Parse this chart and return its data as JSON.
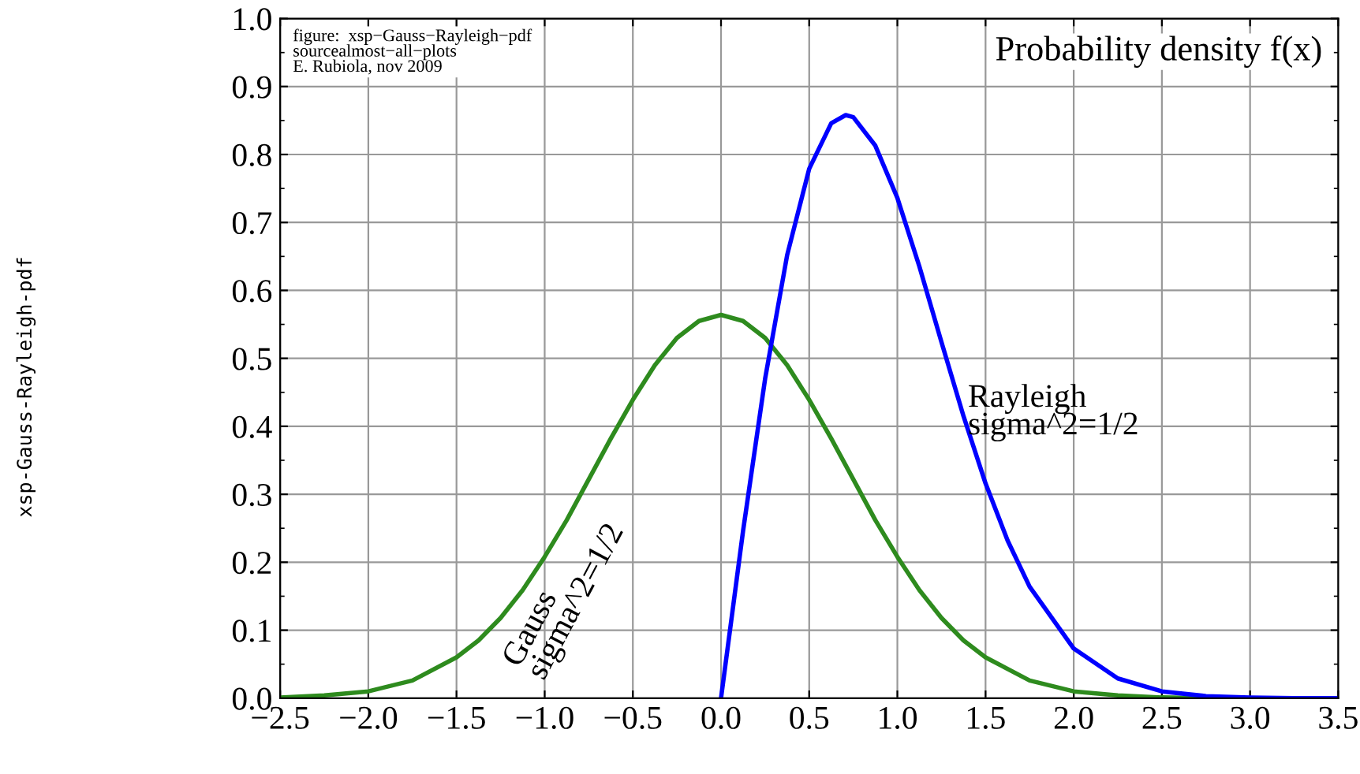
{
  "chart_data": {
    "type": "line",
    "title": "Probability density f(x)",
    "xlim": [
      -2.5,
      3.5
    ],
    "ylim": [
      0,
      1
    ],
    "xticks": [
      {
        "value": -2.5,
        "label": "−2.5"
      },
      {
        "value": -2,
        "label": "−2.0"
      },
      {
        "value": -1.5,
        "label": "−1.5"
      },
      {
        "value": -1,
        "label": "−1.0"
      },
      {
        "value": -0.5,
        "label": "−0.5"
      },
      {
        "value": 0,
        "label": "0.0"
      },
      0.5,
      {
        "value": 1,
        "label": "1.0"
      },
      1.5,
      {
        "value": 2,
        "label": "2.0"
      },
      2.5,
      {
        "value": 3,
        "label": "3.0"
      },
      3.5
    ],
    "yticks": [
      {
        "value": 0,
        "label": "0.0"
      },
      0.1,
      0.2,
      0.3,
      0.4,
      0.5,
      0.6,
      0.7,
      0.8,
      0.9,
      {
        "value": 1,
        "label": "1.0"
      }
    ],
    "grid": true,
    "marker": "none",
    "line_style": "solid",
    "series": [
      {
        "color": "#2e8b1e",
        "x": [
          -2.5,
          -2.25,
          -2,
          -1.75,
          -1.5,
          -1.375,
          -1.25,
          -1.125,
          -1,
          -0.875,
          -0.75,
          -0.625,
          -0.5,
          -0.375,
          -0.25,
          -0.125,
          0,
          0.125,
          0.25,
          0.375,
          0.5,
          0.625,
          0.75,
          0.875,
          1,
          1.125,
          1.25,
          1.375,
          1.5,
          1.75,
          2,
          2.25,
          2.5,
          2.75,
          3
        ],
        "values": [
          0.001,
          0.004,
          0.01,
          0.026,
          0.06,
          0.085,
          0.118,
          0.159,
          0.208,
          0.262,
          0.322,
          0.382,
          0.439,
          0.49,
          0.53,
          0.555,
          0.564,
          0.555,
          0.53,
          0.49,
          0.439,
          0.382,
          0.322,
          0.262,
          0.208,
          0.159,
          0.118,
          0.085,
          0.06,
          0.026,
          0.01,
          0.004,
          0.001,
          0.0,
          0.0
        ]
      },
      {
        "color": "#0000ff",
        "x": [
          0,
          0.125,
          0.25,
          0.375,
          0.5,
          0.625,
          0.707,
          0.75,
          0.875,
          1,
          1.125,
          1.25,
          1.375,
          1.5,
          1.625,
          1.75,
          2,
          2.25,
          2.5,
          2.75,
          3,
          3.25,
          3.5
        ],
        "values": [
          0,
          0.246,
          0.47,
          0.652,
          0.779,
          0.846,
          0.858,
          0.855,
          0.813,
          0.736,
          0.635,
          0.524,
          0.415,
          0.316,
          0.232,
          0.164,
          0.073,
          0.029,
          0.01,
          0.003,
          0.001,
          0.0,
          0.0
        ]
      }
    ],
    "annotations": [
      "figure:  xsp−Gauss−Rayleigh−pdf\nsourcealmost−all−plots\nE. Rubiola, nov 2009",
      "xsp-Gauss-Rayleigh-pdf",
      {
        "text": "Rayleigh\nsigma^2=1/2",
        "x": 1.4,
        "y": 0.42
      },
      "Gauss\nsigma^2=1/2"
    ]
  }
}
